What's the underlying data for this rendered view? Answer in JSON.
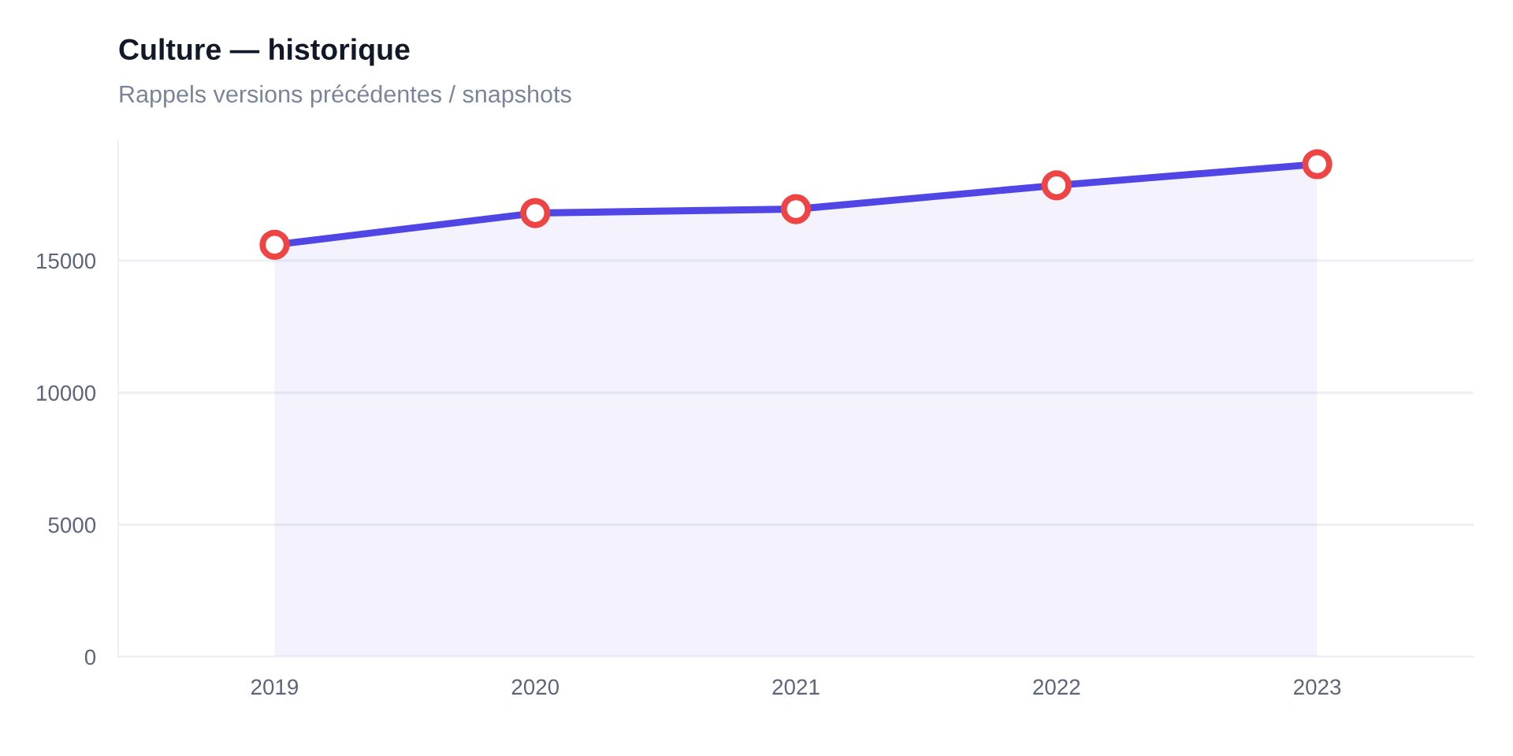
{
  "chart_data": {
    "type": "area",
    "title": "Culture — historique",
    "subtitle": "Rappels versions précédentes / snapshots",
    "categories": [
      "2019",
      "2020",
      "2021",
      "2022",
      "2023"
    ],
    "series": [
      {
        "color": "#4f46e5",
        "colors": [
          "#ef4444",
          "#ef4444",
          "#ef4444",
          "#ef4444",
          "#ef4444"
        ],
        "values": [
          15600,
          16800,
          16950,
          17850,
          18650
        ]
      }
    ],
    "ylim": [
      0,
      19500
    ],
    "yticks": [
      0,
      5000,
      10000,
      15000
    ],
    "grid": "y",
    "marker": "circle",
    "line_style": "solid",
    "legend": false
  }
}
